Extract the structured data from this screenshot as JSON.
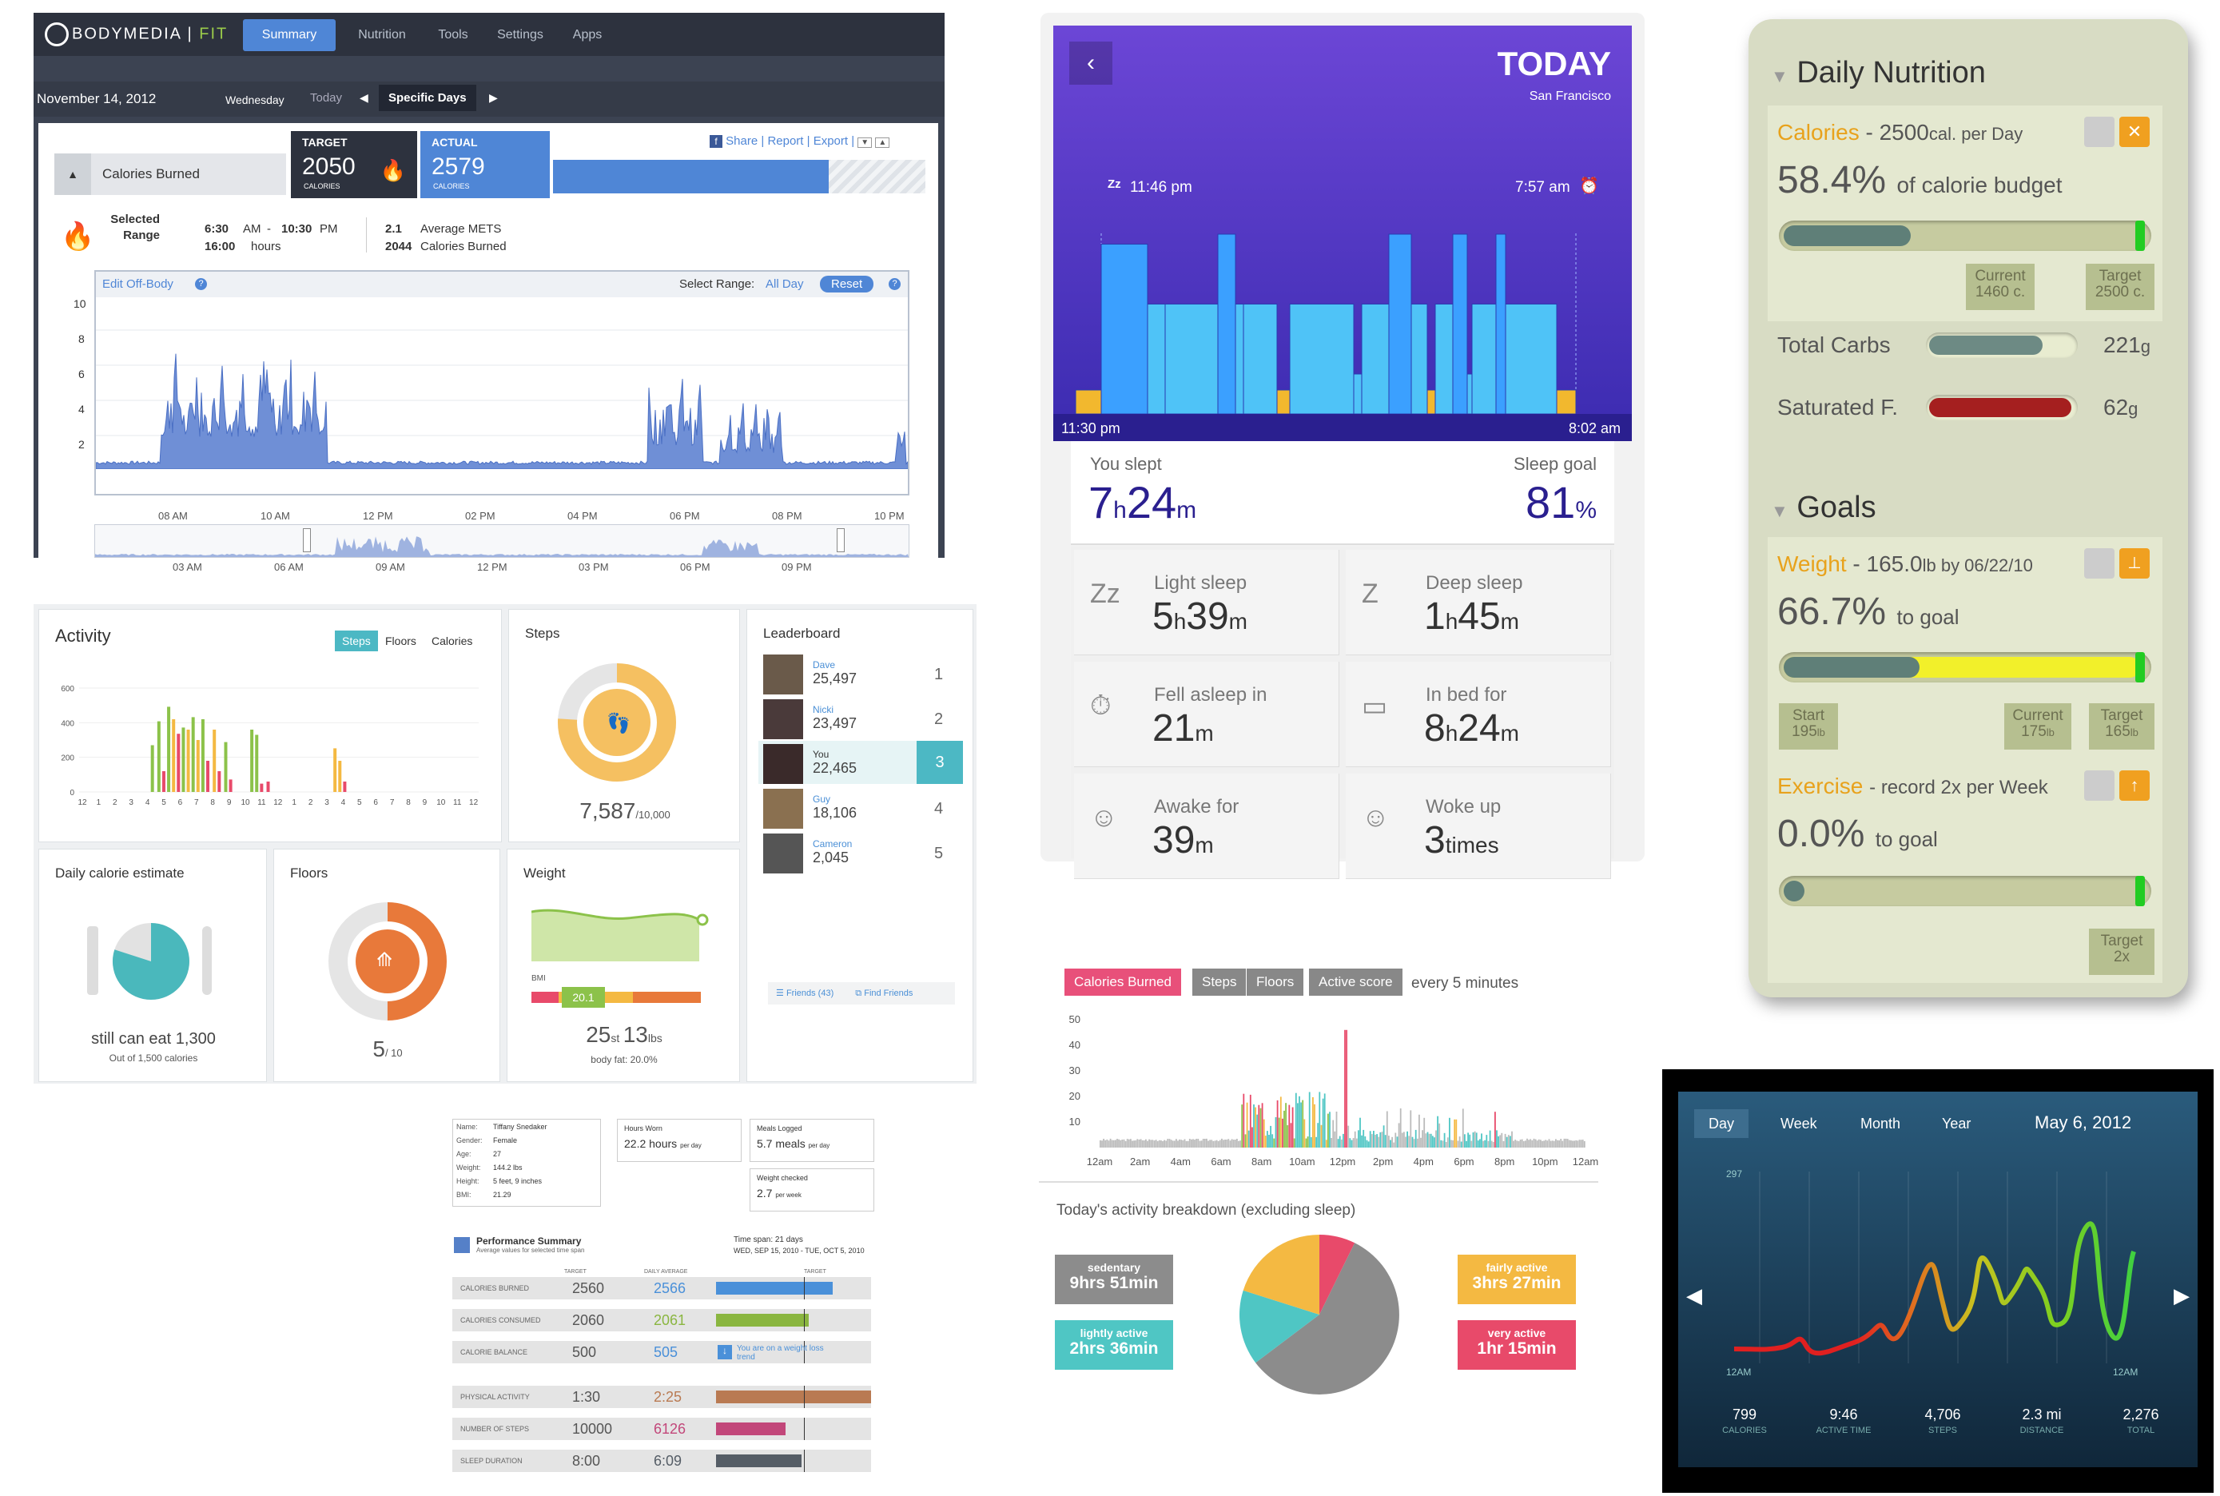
{
  "bodymedia": {
    "logo": "BODYMEDIA",
    "logo_fit": "FIT",
    "nav": [
      "Summary",
      "Nutrition",
      "Tools",
      "Settings",
      "Apps"
    ],
    "date": "November 14, 2012",
    "weekday": "Wednesday",
    "today": "Today",
    "specific_days": "Specific Days",
    "calories_burned": "Calories Burned",
    "target_label": "TARGET",
    "target_value": "2050",
    "target_unit": "CALORIES",
    "actual_label": "ACTUAL",
    "actual_value": "2579",
    "actual_unit": "CALORIES",
    "progress": 0.74,
    "links": [
      "Share",
      "Report",
      "Export"
    ],
    "selected": "Selected",
    "range": "Range",
    "time_from": "6:30",
    "am": "AM",
    "dash": "-",
    "time_to": "10:30",
    "pm": "PM",
    "hours_value": "16:00",
    "hours_label": "hours",
    "mets_value": "2.1",
    "mets_label": "Average METS",
    "cal_value": "2044",
    "cal_label": "Calories Burned",
    "edit_off_body": "Edit Off-Body",
    "select_range": "Select Range:",
    "all_day": "All Day",
    "reset": "Reset",
    "y_ticks": [
      "10",
      "8",
      "6",
      "4",
      "2"
    ],
    "x_ticks": [
      "08 AM",
      "10 AM",
      "12 PM",
      "02 PM",
      "04 PM",
      "06 PM",
      "08 PM",
      "10 PM"
    ],
    "mini_ticks": [
      "03 AM",
      "06 AM",
      "09 AM",
      "12 PM",
      "03 PM",
      "06 PM",
      "09 PM"
    ]
  },
  "fitbit": {
    "activity": {
      "title": "Activity",
      "tabs": [
        "Steps",
        "Floors",
        "Calories"
      ],
      "y_ticks": [
        "600",
        "400",
        "200",
        "0"
      ],
      "x_ticks": [
        "12",
        "1",
        "2",
        "3",
        "4",
        "5",
        "6",
        "7",
        "8",
        "9",
        "10",
        "11",
        "12",
        "1",
        "2",
        "3",
        "4",
        "5",
        "6",
        "7",
        "8",
        "9",
        "10",
        "11",
        "12"
      ]
    },
    "steps": {
      "title": "Steps",
      "value": "7,587",
      "goal": "/10,000",
      "fraction": 0.76
    },
    "leaderboard": {
      "title": "Leaderboard",
      "entries": [
        {
          "name": "Dave",
          "steps": "25,497",
          "rank": "1"
        },
        {
          "name": "Nicki",
          "steps": "23,497",
          "rank": "2"
        },
        {
          "name": "You",
          "steps": "22,465",
          "rank": "3"
        },
        {
          "name": "Guy",
          "steps": "18,106",
          "rank": "4"
        },
        {
          "name": "Cameron",
          "steps": "2,045",
          "rank": "5"
        }
      ],
      "friends": "Friends (43)",
      "find_friends": "Find Friends"
    },
    "calorie": {
      "title": "Daily calorie estimate",
      "main": "still can eat 1,300",
      "sub": "Out of 1,500 calories",
      "fraction": 0.8
    },
    "floors": {
      "title": "Floors",
      "value": "5",
      "goal": "/ 10",
      "fraction": 0.5
    },
    "weight": {
      "title": "Weight",
      "bmi_label": "BMI",
      "bmi": "20.1",
      "st": "25",
      "st_unit": "st",
      "lbs": "13",
      "lbs_unit": "lbs",
      "fat": "body fat: 20.0%"
    }
  },
  "jawbone": {
    "title": "TODAY",
    "city": "San Francisco",
    "sleep_start": "11:46 pm",
    "wake": "7:57 am",
    "axis_start": "11:30 pm",
    "axis_end": "8:02 am",
    "you_slept": "You slept",
    "slept_h": "7",
    "slept_m": "24",
    "sleep_goal": "Sleep goal",
    "goal_pct": "81",
    "pct": "%",
    "h": "h",
    "m": "m",
    "stats": [
      {
        "label": "Light sleep",
        "a": "5",
        "au": "h",
        "b": "39",
        "bu": "m"
      },
      {
        "label": "Deep sleep",
        "a": "1",
        "au": "h",
        "b": "45",
        "bu": "m"
      },
      {
        "label": "Fell asleep in",
        "a": "21",
        "au": "m",
        "b": "",
        "bu": ""
      },
      {
        "label": "In bed for",
        "a": "8",
        "au": "h",
        "b": "24",
        "bu": "m"
      },
      {
        "label": "Awake for",
        "a": "39",
        "au": "m",
        "b": "",
        "bu": ""
      },
      {
        "label": "Woke up",
        "a": "3",
        "au": "times",
        "b": "",
        "bu": ""
      }
    ]
  },
  "nutrition": {
    "title": "Daily Nutrition",
    "calories": "Calories",
    "cal_desc": "- 2500",
    "cal_unit": "cal. per Day",
    "cal_pct": "58.4%",
    "cal_pct_label": "of calorie budget",
    "cal_fill": 0.584,
    "current": "Current",
    "current_val": "1460 c.",
    "target": "Target",
    "target_val": "2500 c.",
    "carbs": "Total Carbs",
    "carbs_val": "221",
    "carbs_fill": 0.78,
    "sat": "Saturated F.",
    "sat_val": "62",
    "sat_fill": 0.98,
    "g": "g",
    "goals": "Goals",
    "weight": "Weight",
    "weight_desc": "- 165.0",
    "weight_unit": "lb by 06/22/10",
    "weight_pct": "66.7%",
    "to_goal": "to goal",
    "weight_fill": 0.667,
    "start": "Start",
    "start_val": "195",
    "w_current": "175",
    "w_target": "165",
    "lb": "lb",
    "exercise": "Exercise",
    "exercise_desc": "- record 2x per Week",
    "exercise_pct": "0.0%",
    "ex_target_val": "2x"
  },
  "activity_breakdown": {
    "tabs": [
      "Calories Burned",
      "Steps",
      "Floors",
      "Active score"
    ],
    "interval": "every 5 minutes",
    "y_ticks": [
      "50",
      "40",
      "30",
      "20",
      "10"
    ],
    "x_ticks": [
      "12am",
      "2am",
      "4am",
      "6am",
      "8am",
      "10am",
      "12pm",
      "2pm",
      "4pm",
      "6pm",
      "8pm",
      "10pm",
      "12am"
    ],
    "heading": "Today's activity breakdown (excluding sleep)",
    "sedentary_label": "sedentary",
    "sedentary": "9hrs 51min",
    "lightly_label": "lightly active",
    "lightly": "2hrs 36min",
    "fairly_label": "fairly active",
    "fairly": "3hrs 27min",
    "very_label": "very active",
    "very": "1hr 15min",
    "colors": {
      "sedentary": "#8c8c8c",
      "lightly": "#4fc6c4",
      "fairly": "#f4b942",
      "very": "#e84a6a"
    }
  },
  "ipad": {
    "tabs": [
      "Day",
      "Week",
      "Month",
      "Year"
    ],
    "date": "May 6, 2012",
    "peak": "297",
    "left_label": "12AM",
    "right_label": "12AM",
    "stats": [
      {
        "value": "799",
        "label": "CALORIES",
        "icon": "flame-icon"
      },
      {
        "value": "9:46",
        "label": "ACTIVE TIME",
        "icon": "clock-icon"
      },
      {
        "value": "4,706",
        "label": "STEPS",
        "icon": "shoe-icon"
      },
      {
        "value": "2.3 mi",
        "label": "DISTANCE",
        "icon": "distance-icon"
      },
      {
        "value": "2,276",
        "label": "TOTAL",
        "icon": "total-icon"
      }
    ]
  },
  "report": {
    "profile": [
      {
        "k": "Name:",
        "v": "Tiffany Snedaker"
      },
      {
        "k": "Gender:",
        "v": "Female"
      },
      {
        "k": "Age:",
        "v": "27"
      },
      {
        "k": "Weight:",
        "v": "144.2 lbs"
      },
      {
        "k": "Height:",
        "v": "5 feet, 9 inches"
      },
      {
        "k": "BMI:",
        "v": "21.29"
      }
    ],
    "hours_worn_label": "Hours Worn",
    "hours_worn": "22.2 hours",
    "per_day": "per day",
    "meals_label": "Meals Logged",
    "meals": "5.7 meals",
    "weight_checked_label": "Weight checked",
    "weight_checked": "2.7",
    "per_week": "per week",
    "perf_title": "Performance Summary",
    "perf_sub": "Average values for selected time span",
    "span": "Time span: 21 days",
    "span_dates": "WED, SEP 15, 2010 - TUE, OCT 5, 2010",
    "target_h": "TARGET",
    "daily_avg_h": "DAILY AVERAGE",
    "rows": [
      {
        "name": "CALORIES BURNED",
        "target": "2560",
        "avg": "2566",
        "color": "#4a90d9",
        "fill": 0.75
      },
      {
        "name": "CALORIES CONSUMED",
        "target": "2060",
        "avg": "2061",
        "color": "#8ab640",
        "fill": 0.6
      },
      {
        "name": "CALORIE BALANCE",
        "target": "500",
        "avg": "505",
        "color": "#4a90d9",
        "fill": 0.0
      },
      {
        "name": "PHYSICAL ACTIVITY",
        "target": "1:30",
        "avg": "2:25",
        "color": "#b97a52",
        "fill": 1.0
      },
      {
        "name": "NUMBER OF STEPS",
        "target": "10000",
        "avg": "6126",
        "color": "#c2477a",
        "fill": 0.45
      },
      {
        "name": "SLEEP DURATION",
        "target": "8:00",
        "avg": "6:09",
        "color": "#555d66",
        "fill": 0.55
      }
    ],
    "balance_note": "You are on a weight loss trend"
  }
}
